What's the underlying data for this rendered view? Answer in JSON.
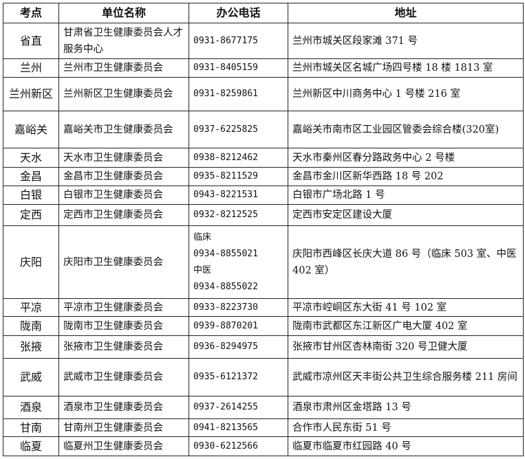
{
  "headers": [
    "考点",
    "单位名称",
    "办公电话",
    "地址"
  ],
  "rows": [
    {
      "site": "省直",
      "unit": "甘肃省卫生健康委员会人才服务中心",
      "phone": [
        "0931-8677175"
      ],
      "address": "兰州市城关区段家滩 371 号"
    },
    {
      "site": "兰州",
      "unit": "兰州市卫生健康委员会",
      "phone": [
        "0931-8405159"
      ],
      "address": "兰州市城关区名城广场四号楼 18 楼 1813 室"
    },
    {
      "site": "兰州新区",
      "unit": "兰州新区卫生健康委员会",
      "phone": [
        "0931-8259861"
      ],
      "address": "兰州新区中川商务中心 1 号楼 216 室"
    },
    {
      "site": "嘉峪关",
      "unit": "嘉峪关市卫生健康委员会",
      "phone": [
        "0937-6225825"
      ],
      "address": "嘉峪关市南市区工业园区管委会综合楼(320室)"
    },
    {
      "site": "天水",
      "unit": "天水市卫生健康委员会",
      "phone": [
        "0938-8212462"
      ],
      "address": "天水市秦州区春分路政务中心 2 号楼"
    },
    {
      "site": "金昌",
      "unit": "金昌市卫生健康委员会",
      "phone": [
        "0935-8211529"
      ],
      "address": "金昌市金川区新华西路 18 号 202"
    },
    {
      "site": "白银",
      "unit": "白银市卫生健康委员会",
      "phone": [
        "0943-8221531"
      ],
      "address": "白银市广场北路 1 号"
    },
    {
      "site": "定西",
      "unit": "定西市卫生健康委员会",
      "phone": [
        "0932-8212525"
      ],
      "address": "定西市安定区建设大厦"
    },
    {
      "site": "庆阳",
      "unit": "庆阳市卫生健康委员会",
      "phone": [
        "临床",
        "0934-8855021",
        "中医",
        "0934-8855022"
      ],
      "address": "庆阳市西峰区长庆大道 86 号（临床 503 室、中医 402 室）"
    },
    {
      "site": "平凉",
      "unit": "平凉市卫生健康委员会",
      "phone": [
        "0933-8223730"
      ],
      "address": "平凉市崆峒区东大街 41 号 102 室"
    },
    {
      "site": "陇南",
      "unit": "陇南市卫生健康委员会",
      "phone": [
        "0939-8870201"
      ],
      "address": "陇南市武都区东江新区广电大厦 402 室"
    },
    {
      "site": "张掖",
      "unit": "张掖市卫生健康委员会",
      "phone": [
        "0936-8294975"
      ],
      "address": "张掖市甘州区杏林南街 320 号卫健大厦"
    },
    {
      "site": "武威",
      "unit": "武威市卫生健康委员会",
      "phone": [
        "0935-6121372"
      ],
      "address": "武威市凉州区天丰街公共卫生综合服务楼 211 房间"
    },
    {
      "site": "酒泉",
      "unit": "酒泉市卫生健康委员会",
      "phone": [
        "0937-2614255"
      ],
      "address": "酒泉市肃州区金塔路 13 号"
    },
    {
      "site": "甘南",
      "unit": "甘南州卫生健康委员会",
      "phone": [
        "0941-8213565"
      ],
      "address": "合作市人民东街 51 号"
    },
    {
      "site": "临夏",
      "unit": "临夏州卫生健康委员会",
      "phone": [
        "0930-6212566"
      ],
      "address": "临夏市临夏市红园路 40 号"
    }
  ]
}
